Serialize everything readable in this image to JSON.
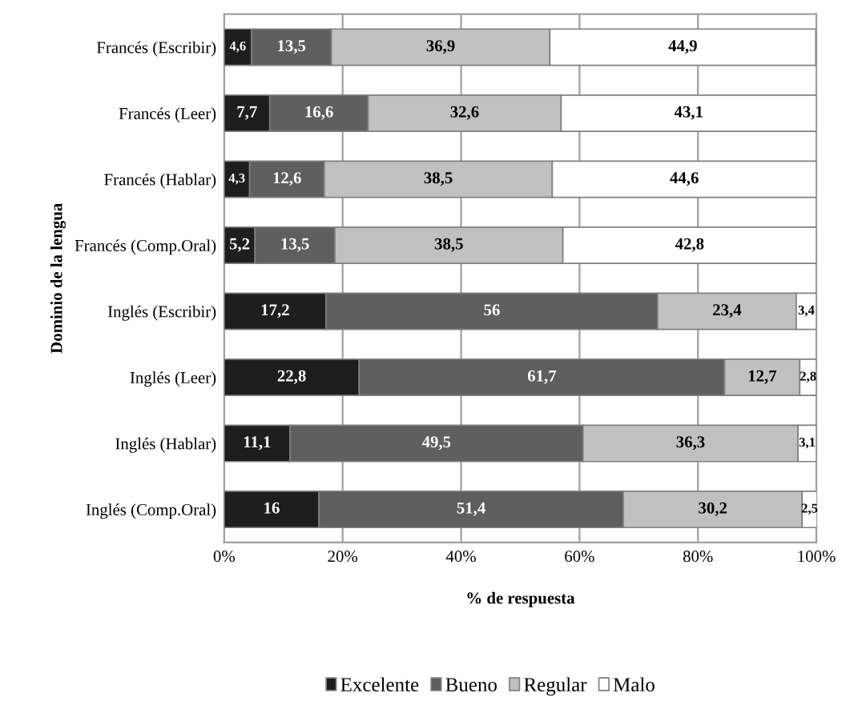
{
  "chart_data": {
    "type": "bar",
    "orientation": "horizontal",
    "stacked": true,
    "xlabel": "% de respuesta",
    "ylabel": "Dominio de la lengua",
    "categories": [
      "Francés (Escribir)",
      "Francés (Leer)",
      "Francés (Hablar)",
      "Francés (Comp.Oral)",
      "Inglés (Escribir)",
      "Inglés (Leer)",
      "Inglés (Hablar)",
      "Inglés (Comp.Oral)"
    ],
    "series": [
      {
        "name": "Excelente",
        "color": "#1e1e1e",
        "values": [
          4.6,
          7.7,
          4.3,
          5.2,
          17.2,
          22.8,
          11.1,
          16
        ],
        "value_labels": [
          "4,6",
          "7,7",
          "4,3",
          "5,2",
          "17,2",
          "22,8",
          "11,1",
          "16"
        ]
      },
      {
        "name": "Bueno",
        "color": "#5f5f5f",
        "values": [
          13.5,
          16.6,
          12.6,
          13.5,
          56,
          61.7,
          49.5,
          51.4
        ],
        "value_labels": [
          "13,5",
          "16,6",
          "12,6",
          "13,5",
          "56",
          "61,7",
          "49,5",
          "51,4"
        ]
      },
      {
        "name": "Regular",
        "color": "#c0c0c0",
        "values": [
          36.9,
          32.6,
          38.5,
          38.5,
          23.4,
          12.7,
          36.3,
          30.2
        ],
        "value_labels": [
          "36,9",
          "32,6",
          "38,5",
          "38,5",
          "23,4",
          "12,7",
          "36,3",
          "30,2"
        ]
      },
      {
        "name": "Malo",
        "color": "#ffffff",
        "values": [
          44.9,
          43.1,
          44.6,
          42.8,
          3.4,
          2.8,
          3.1,
          2.5
        ],
        "value_labels": [
          "44,9",
          "43,1",
          "44,6",
          "42,8",
          "3,4",
          "2,8",
          "3,1",
          "2,5"
        ]
      }
    ],
    "xlim": [
      0,
      100
    ],
    "xticks": [
      {
        "value": 0,
        "label": "0%"
      },
      {
        "value": 20,
        "label": "20%"
      },
      {
        "value": 40,
        "label": "40%"
      },
      {
        "value": 60,
        "label": "60%"
      },
      {
        "value": 80,
        "label": "80%"
      },
      {
        "value": 100,
        "label": "100%"
      }
    ],
    "grid": "x",
    "legend": "bottom"
  }
}
